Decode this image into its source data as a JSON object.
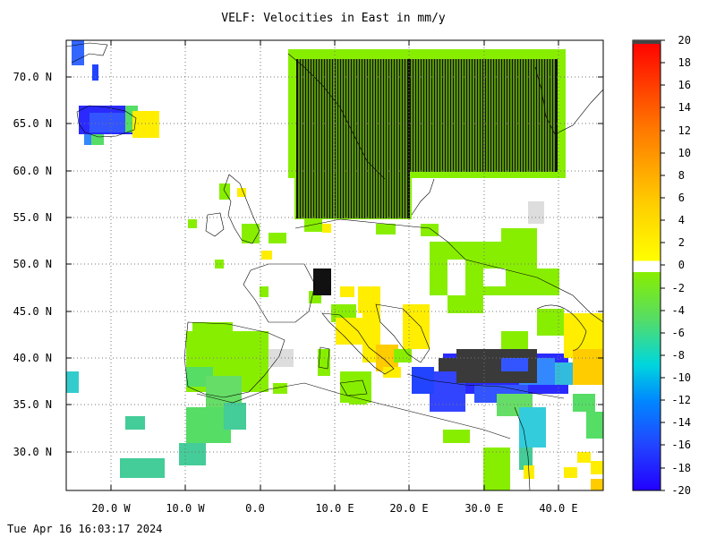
{
  "title": "VELF: Velocities in East in mm/y",
  "footer_timestamp": "Tue Apr 16 16:03:17 2024",
  "map": {
    "lat_ticks": [
      {
        "lat": 70,
        "label": "70.0 N"
      },
      {
        "lat": 65,
        "label": "65.0 N"
      },
      {
        "lat": 60,
        "label": "60.0 N"
      },
      {
        "lat": 55,
        "label": "55.0 N"
      },
      {
        "lat": 50,
        "label": "50.0 N"
      },
      {
        "lat": 45,
        "label": "45.0 N"
      },
      {
        "lat": 40,
        "label": "40.0 N"
      },
      {
        "lat": 35,
        "label": "35.0 N"
      },
      {
        "lat": 30,
        "label": "30.0 N"
      }
    ],
    "lon_ticks": [
      {
        "lon": -20,
        "label": "20.0 W"
      },
      {
        "lon": -10,
        "label": "10.0 W"
      },
      {
        "lon": 0,
        "label": "0.0"
      },
      {
        "lon": 10,
        "label": "10.0 E"
      },
      {
        "lon": 20,
        "label": "20.0 E"
      },
      {
        "lon": 30,
        "label": "30.0 E"
      },
      {
        "lon": 40,
        "label": "40.0 E"
      }
    ],
    "lon_range": [
      -26,
      46
    ],
    "lat_range": [
      26,
      74
    ],
    "grid": "dotted"
  },
  "colorbar": {
    "min": -20,
    "max": 20,
    "labels": [
      "20",
      "18",
      "16",
      "14",
      "12",
      "10",
      "8",
      "6",
      "4",
      "2",
      "0",
      "-2",
      "-4",
      "-6",
      "-8",
      "-10",
      "-12",
      "-14",
      "-16",
      "-18",
      "-20"
    ]
  },
  "chart_data": {
    "type": "heatmap",
    "title": "VELF: Velocities in East in mm/y",
    "xlabel": "",
    "ylabel": "",
    "xlim": [
      -26,
      46
    ],
    "ylim": [
      26,
      74
    ],
    "units": "mm/y",
    "colorbar_range": [
      -20,
      20
    ],
    "regions": [
      {
        "lon": [
          5,
          40
        ],
        "lat": [
          55,
          73
        ],
        "value": -1
      },
      {
        "lon": [
          -25,
          -13
        ],
        "lat": [
          63.5,
          67
        ],
        "value": -16
      },
      {
        "lon": [
          -13,
          -11
        ],
        "lat": [
          63.5,
          66
        ],
        "value": 4
      },
      {
        "lon": [
          -9,
          0
        ],
        "lat": [
          36,
          44
        ],
        "value": -1
      },
      {
        "lon": [
          -8,
          -4
        ],
        "lat": [
          30,
          36
        ],
        "value": -4
      },
      {
        "lon": [
          -6,
          20
        ],
        "lat": [
          44,
          55
        ],
        "value": -1
      },
      {
        "lon": [
          12,
          22
        ],
        "lat": [
          40,
          47
        ],
        "value": 2
      },
      {
        "lon": [
          20,
          38
        ],
        "lat": [
          43,
          52
        ],
        "value": -1
      },
      {
        "lon": [
          22,
          36
        ],
        "lat": [
          36,
          40
        ],
        "value": -16
      },
      {
        "lon": [
          36,
          46
        ],
        "lat": [
          36,
          43
        ],
        "value": 2
      },
      {
        "lon": [
          26,
          36
        ],
        "lat": [
          26,
          36
        ],
        "value": -4
      },
      {
        "lon": [
          -19,
          -16
        ],
        "lat": [
          27,
          29
        ],
        "value": -5
      }
    ]
  }
}
